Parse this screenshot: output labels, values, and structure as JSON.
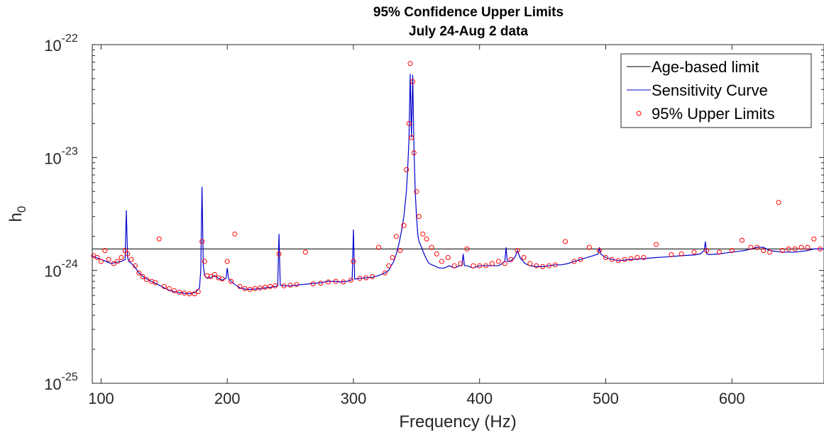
{
  "chart_data": {
    "type": "line",
    "title": "95% Confidence Upper Limits",
    "subtitle": "July 24-Aug 2 data",
    "xlabel": "Frequency (Hz)",
    "ylabel_base": "h",
    "ylabel_sub": "0",
    "xlim": [
      93,
      673
    ],
    "ylim": [
      1e-25,
      1e-22
    ],
    "yscale": "log",
    "grid": false,
    "legend_position": "top-right",
    "x_ticks": [
      "100",
      "200",
      "300",
      "400",
      "500",
      "600"
    ],
    "x_tick_values": [
      100,
      200,
      300,
      400,
      500,
      600
    ],
    "y_ticks": [
      {
        "value": 1e-22,
        "base": "10",
        "exp": "-22"
      },
      {
        "value": 1e-23,
        "base": "10",
        "exp": "-23"
      },
      {
        "value": 1e-24,
        "base": "10",
        "exp": "-24"
      },
      {
        "value": 1e-25,
        "base": "10",
        "exp": "-25"
      }
    ],
    "series": [
      {
        "name": "Age-based limit",
        "color": "#000000",
        "style": "line",
        "x": [
          93,
          673
        ],
        "y": [
          1.55e-24,
          1.55e-24
        ]
      },
      {
        "name": "Sensitivity Curve",
        "color": "#0000cc",
        "style": "line",
        "x": [
          93,
          96,
          100,
          104,
          108,
          112,
          116,
          119,
          120,
          121,
          122,
          126,
          130,
          135,
          140,
          145,
          150,
          155,
          160,
          165,
          170,
          175,
          178,
          179,
          180,
          181,
          182,
          184,
          187,
          190,
          193,
          196,
          199,
          200,
          201,
          203,
          206,
          210,
          215,
          220,
          225,
          230,
          235,
          238,
          240,
          241,
          242,
          245,
          250,
          255,
          260,
          265,
          270,
          275,
          280,
          285,
          290,
          295,
          298,
          299,
          300,
          301,
          302,
          305,
          310,
          315,
          320,
          325,
          328,
          330,
          332,
          334,
          336,
          338,
          340,
          342,
          343,
          344,
          345,
          346,
          347,
          348,
          349,
          350,
          351,
          352,
          354,
          356,
          358,
          360,
          364,
          368,
          372,
          376,
          380,
          384,
          386,
          387,
          388,
          390,
          395,
          400,
          405,
          410,
          415,
          418,
          420,
          421,
          422,
          424,
          428,
          430,
          432,
          436,
          440,
          445,
          450,
          455,
          460,
          465,
          470,
          475,
          480,
          485,
          490,
          494,
          495,
          496,
          500,
          505,
          510,
          520,
          530,
          540,
          550,
          560,
          570,
          575,
          578,
          579,
          580,
          582,
          590,
          600,
          610,
          615,
          620,
          625,
          630,
          640,
          650,
          660,
          665,
          670,
          673
        ],
        "y": [
          1.35e-24,
          1.3e-24,
          1.25e-24,
          1.2e-24,
          1.15e-24,
          1.18e-24,
          1.2e-24,
          1.25e-24,
          3.4e-24,
          1.3e-24,
          1.2e-24,
          1.1e-24,
          9.5e-25,
          8.5e-25,
          8e-25,
          7.5e-25,
          7e-25,
          6.6e-25,
          6.4e-25,
          6.3e-25,
          6.2e-25,
          6.4e-25,
          7e-25,
          1e-24,
          5.5e-24,
          1.1e-24,
          9e-25,
          8.5e-25,
          8.7e-25,
          9e-25,
          8.5e-25,
          8.2e-25,
          8.5e-25,
          1.05e-24,
          8.5e-25,
          8e-25,
          7.5e-25,
          7e-25,
          6.8e-25,
          6.8e-25,
          6.9e-25,
          7e-25,
          7.1e-25,
          7.2e-25,
          7.3e-25,
          2.1e-24,
          7.4e-25,
          7.3e-25,
          7.3e-25,
          7.4e-25,
          7.5e-25,
          7.6e-25,
          7.7e-25,
          7.8e-25,
          8e-25,
          8e-25,
          7.9e-25,
          8e-25,
          8.2e-25,
          8.3e-25,
          2.3e-24,
          8.4e-25,
          8.4e-25,
          8.5e-25,
          8.6e-25,
          8.7e-25,
          9e-25,
          9.5e-25,
          1e-24,
          1.1e-24,
          1.2e-24,
          1.4e-24,
          1.7e-24,
          2.2e-24,
          3e-24,
          5e-24,
          8e-24,
          1.4e-23,
          5.5e-23,
          1.5e-23,
          5.4e-23,
          1.2e-23,
          5e-24,
          3e-24,
          2.1e-24,
          1.8e-24,
          1.6e-24,
          1.4e-24,
          1.25e-24,
          1.15e-24,
          1.1e-24,
          1.05e-24,
          1.05e-24,
          1.1e-24,
          1.05e-24,
          1.1e-24,
          1.1e-24,
          1.4e-24,
          1.1e-24,
          1.1e-24,
          1.05e-24,
          1.1e-24,
          1.1e-24,
          1.1e-24,
          1.1e-24,
          1.15e-24,
          1.2e-24,
          1.6e-24,
          1.2e-24,
          1.2e-24,
          1.3e-24,
          1.5e-24,
          1.3e-24,
          1.15e-24,
          1.1e-24,
          1.08e-24,
          1.08e-24,
          1.1e-24,
          1.12e-24,
          1.12e-24,
          1.15e-24,
          1.2e-24,
          1.25e-24,
          1.3e-24,
          1.35e-24,
          1.4e-24,
          1.6e-24,
          1.4e-24,
          1.3e-24,
          1.25e-24,
          1.22e-24,
          1.25e-24,
          1.27e-24,
          1.3e-24,
          1.32e-24,
          1.35e-24,
          1.37e-24,
          1.4e-24,
          1.5e-24,
          1.8e-24,
          1.4e-24,
          1.38e-24,
          1.4e-24,
          1.45e-24,
          1.5e-24,
          1.55e-24,
          1.6e-24,
          1.6e-24,
          1.5e-24,
          1.45e-24,
          1.45e-24,
          1.5e-24,
          1.55e-24,
          1.55e-24,
          1.55e-24
        ]
      },
      {
        "name": "95% Upper Limits",
        "color": "#ff0000",
        "style": "markers",
        "x": [
          94,
          97,
          100,
          103,
          106,
          110,
          113,
          116,
          119,
          121,
          124,
          127,
          130,
          133,
          136,
          140,
          143,
          146,
          150,
          154,
          158,
          162,
          166,
          170,
          174,
          177,
          180,
          182,
          184,
          187,
          190,
          193,
          196,
          200,
          203,
          206,
          210,
          214,
          218,
          222,
          226,
          230,
          234,
          238,
          241,
          245,
          250,
          255,
          262,
          268,
          274,
          280,
          286,
          292,
          298,
          300,
          305,
          310,
          315,
          320,
          325,
          328,
          331,
          334,
          337,
          340,
          342,
          344,
          345,
          346,
          347,
          348,
          350,
          352,
          355,
          358,
          362,
          366,
          370,
          375,
          380,
          385,
          390,
          395,
          400,
          405,
          410,
          415,
          420,
          425,
          430,
          435,
          440,
          445,
          450,
          455,
          460,
          468,
          475,
          480,
          487,
          495,
          500,
          505,
          510,
          515,
          520,
          525,
          530,
          540,
          552,
          560,
          570,
          580,
          590,
          600,
          608,
          615,
          620,
          625,
          630,
          637,
          640,
          645,
          650,
          655,
          660,
          665,
          670
        ],
        "y": [
          1.35e-24,
          1.3e-24,
          1.2e-24,
          1.5e-24,
          1.25e-24,
          1.15e-24,
          1.2e-24,
          1.3e-24,
          1.5e-24,
          1.4e-24,
          1.25e-24,
          1.1e-24,
          9.5e-25,
          8.8e-25,
          8.3e-25,
          8e-25,
          7.8e-25,
          1.9e-24,
          7.2e-25,
          6.9e-25,
          6.6e-25,
          6.4e-25,
          6.3e-25,
          6.2e-25,
          6.2e-25,
          6.5e-25,
          1.8e-24,
          1.2e-24,
          9e-25,
          8.8e-25,
          9.2e-25,
          8.6e-25,
          8.4e-25,
          1.2e-24,
          8e-25,
          2.1e-24,
          7.2e-25,
          6.9e-25,
          6.8e-25,
          6.9e-25,
          7e-25,
          7.1e-25,
          7.2e-25,
          7.3e-25,
          1.4e-24,
          7.3e-25,
          7.4e-25,
          7.5e-25,
          1.45e-24,
          7.6e-25,
          7.7e-25,
          7.9e-25,
          8e-25,
          7.9e-25,
          8.2e-25,
          1.2e-24,
          8.5e-25,
          8.6e-25,
          8.8e-25,
          1.6e-24,
          9.5e-25,
          1.1e-24,
          1.3e-24,
          2e-24,
          1.5e-24,
          2.5e-24,
          7.8e-24,
          2e-23,
          6.8e-23,
          1.5e-23,
          4.7e-23,
          1.1e-23,
          5e-24,
          3e-24,
          2.1e-24,
          1.9e-24,
          1.6e-24,
          1.4e-24,
          1.2e-24,
          1.3e-24,
          1.1e-24,
          1.15e-24,
          1.55e-24,
          1.1e-24,
          1.1e-24,
          1.1e-24,
          1.15e-24,
          1.2e-24,
          1.15e-24,
          1.25e-24,
          1.5e-24,
          1.3e-24,
          1.15e-24,
          1.1e-24,
          1.08e-24,
          1.1e-24,
          1.12e-24,
          1.8e-24,
          1.2e-24,
          1.25e-24,
          1.6e-24,
          1.5e-24,
          1.3e-24,
          1.25e-24,
          1.22e-24,
          1.25e-24,
          1.27e-24,
          1.3e-24,
          1.3e-24,
          1.7e-24,
          1.38e-24,
          1.4e-24,
          1.45e-24,
          1.5e-24,
          1.45e-24,
          1.5e-24,
          1.85e-24,
          1.6e-24,
          1.6e-24,
          1.5e-24,
          1.45e-24,
          4e-24,
          1.5e-24,
          1.55e-24,
          1.55e-24,
          1.6e-24,
          1.6e-24,
          1.9e-24,
          1.55e-24
        ]
      }
    ]
  }
}
